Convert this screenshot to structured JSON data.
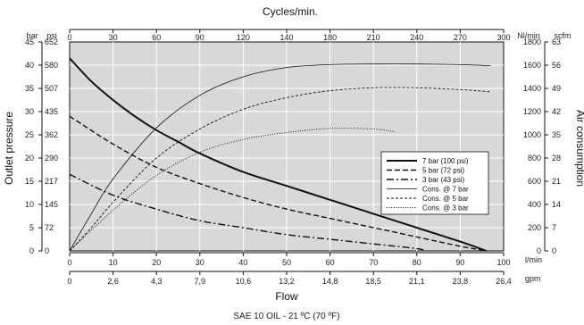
{
  "colors": {
    "plot_background": "#d8d8d8",
    "grid": "#ffffff",
    "line": "#111111"
  },
  "labels": {
    "top_axis_title": "Cycles/min.",
    "left_axis_title": "Outlet pressure",
    "right_axis_title": "Air consumption",
    "bottom_axis_title": "Flow",
    "footnote": "SAE 10 OIL - 21 ºC (70 ºF)",
    "left_unit_bar": "bar",
    "left_unit_psi": "psi",
    "right_unit_nlmin": "Nl/min",
    "right_unit_scfm": "scfm",
    "bottom_unit_lmin": "l/min",
    "bottom_unit_gpm": "gpm"
  },
  "chart_data": {
    "type": "line",
    "legend_position": "right, inside plot",
    "grid": true,
    "xlabel": "Flow",
    "ylabel_left": "Outlet pressure",
    "ylabel_right": "Air consumption",
    "xlabel_top": "Cycles/min.",
    "x_lmin": {
      "range": [
        0,
        100
      ],
      "ticks": [
        0,
        10,
        20,
        30,
        40,
        50,
        60,
        70,
        80,
        90,
        100
      ],
      "tick_labels": [
        "0",
        "10",
        "20",
        "30",
        "40",
        "50",
        "60",
        "70",
        "80",
        "90",
        "100"
      ]
    },
    "x_gpm_tick_labels": [
      "0",
      "2,6",
      "4,3",
      "7,9",
      "10,6",
      "13,2",
      "14,8",
      "18,5",
      "21,1",
      "23,8",
      "26,4"
    ],
    "x_cycles": {
      "range": [
        0,
        300
      ],
      "ticks": [
        0,
        30,
        60,
        90,
        120,
        140,
        180,
        210,
        240,
        270,
        300
      ],
      "tick_labels": [
        "0",
        "30",
        "60",
        "90",
        "120",
        "140",
        "180",
        "210",
        "240",
        "270",
        "300"
      ]
    },
    "y_bar": {
      "range": [
        0,
        45
      ],
      "ticks": [
        0,
        5,
        10,
        15,
        20,
        25,
        30,
        35,
        40,
        45
      ],
      "tick_labels": [
        "0",
        "5",
        "10",
        "15",
        "20",
        "25",
        "30",
        "35",
        "40",
        "45"
      ]
    },
    "y_psi_tick_labels": [
      "0",
      "72",
      "145",
      "217",
      "290",
      "362",
      "435",
      "507",
      "580",
      "652"
    ],
    "y_nlmin": {
      "range": [
        0,
        1800
      ],
      "ticks": [
        0,
        200,
        400,
        600,
        800,
        1000,
        1200,
        1400,
        1600,
        1800
      ],
      "tick_labels": [
        "0",
        "200",
        "400",
        "600",
        "800",
        "1000",
        "1200",
        "1400",
        "1600",
        "1800"
      ]
    },
    "y_scfm_tick_labels": [
      "0",
      "7",
      "14",
      "21",
      "28",
      "35",
      "42",
      "49",
      "56",
      "63"
    ],
    "series": [
      {
        "name": "7 bar (100 psi)",
        "axis": "left",
        "style": "solid-thick",
        "x": [
          0,
          5,
          10,
          15,
          20,
          25,
          30,
          40,
          50,
          60,
          70,
          80,
          90,
          96
        ],
        "y": [
          41.5,
          36.5,
          32.5,
          29,
          26,
          23.5,
          21,
          17,
          14,
          11,
          8,
          5,
          2,
          0
        ]
      },
      {
        "name": "5 bar (72 psi)",
        "axis": "left",
        "style": "dashed",
        "x": [
          0,
          10,
          20,
          30,
          40,
          50,
          60,
          70,
          80,
          90,
          96
        ],
        "y": [
          29,
          23,
          18,
          14.5,
          11.5,
          9,
          7,
          5,
          3,
          1,
          0
        ]
      },
      {
        "name": "3 bar (43 psi)",
        "axis": "left",
        "style": "dash-dot",
        "x": [
          0,
          10,
          20,
          30,
          40,
          50,
          60,
          70,
          80,
          82
        ],
        "y": [
          16.5,
          12,
          9,
          6.5,
          5,
          3.5,
          2.5,
          1.5,
          0.5,
          0
        ]
      },
      {
        "name": "Cons. @ 7 bar",
        "axis": "right",
        "style": "solid-thin",
        "x": [
          0,
          5,
          10,
          20,
          30,
          40,
          50,
          60,
          70,
          80,
          90,
          97
        ],
        "y": [
          0,
          320,
          620,
          1060,
          1340,
          1500,
          1580,
          1605,
          1610,
          1610,
          1605,
          1595
        ]
      },
      {
        "name": "Cons. @ 5 bar",
        "axis": "right",
        "style": "dashed-thin",
        "x": [
          0,
          5,
          10,
          20,
          30,
          40,
          50,
          60,
          70,
          80,
          90,
          97
        ],
        "y": [
          0,
          200,
          420,
          800,
          1050,
          1220,
          1320,
          1380,
          1405,
          1405,
          1390,
          1370
        ]
      },
      {
        "name": "Cons. @ 3 bar",
        "axis": "right",
        "style": "dotted",
        "x": [
          0,
          10,
          20,
          30,
          40,
          50,
          60,
          70,
          75
        ],
        "y": [
          0,
          350,
          650,
          850,
          960,
          1020,
          1055,
          1050,
          1025
        ]
      }
    ]
  }
}
